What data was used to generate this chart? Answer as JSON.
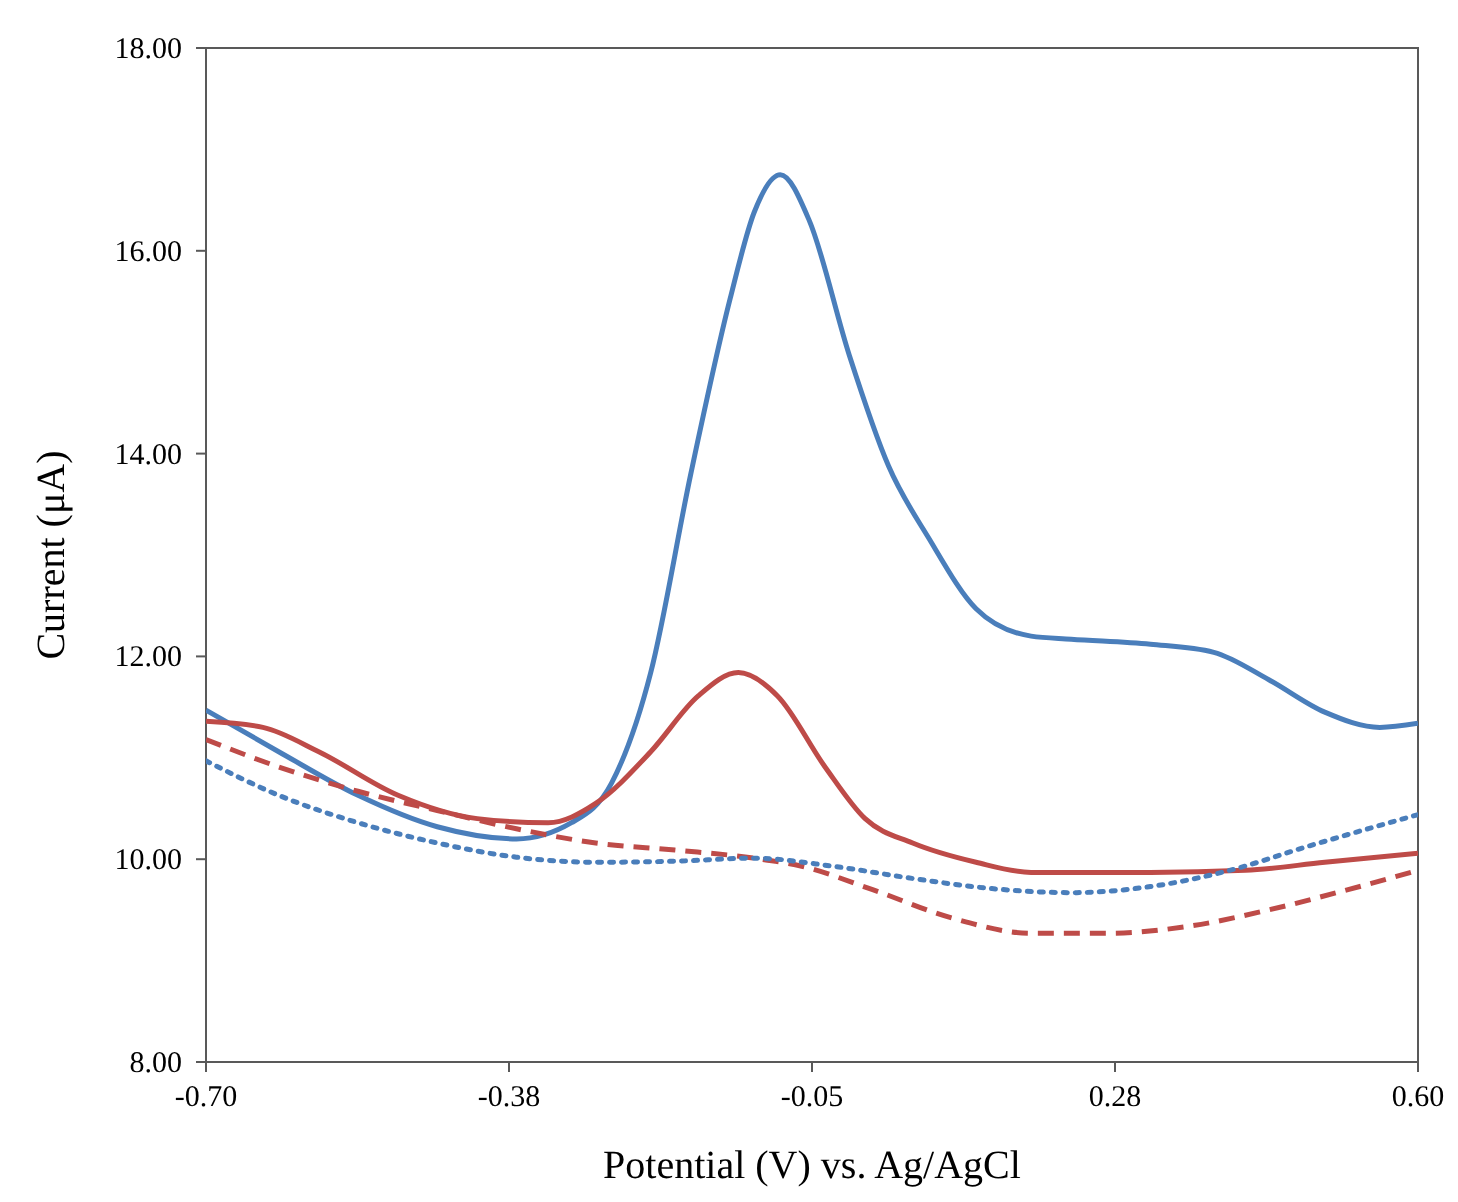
{
  "chart_data": {
    "type": "line",
    "xlabel": "Potential (V) vs. Ag/AgCl",
    "ylabel": "Current (μA)",
    "xlim": [
      -0.7,
      0.6
    ],
    "ylim": [
      8,
      18
    ],
    "xticks": [
      {
        "value": -0.7,
        "label": "-0.70"
      },
      {
        "value": -0.375,
        "label": "-0.38"
      },
      {
        "value": -0.05,
        "label": "-0.05"
      },
      {
        "value": 0.275,
        "label": "0.28"
      },
      {
        "value": 0.6,
        "label": "0.60"
      }
    ],
    "yticks": [
      {
        "value": 8,
        "label": "8.00"
      },
      {
        "value": 10,
        "label": "10.00"
      },
      {
        "value": 12,
        "label": "12.00"
      },
      {
        "value": 14,
        "label": "14.00"
      },
      {
        "value": 16,
        "label": "16.00"
      },
      {
        "value": 18,
        "label": "18.00"
      }
    ],
    "grid": false,
    "marker": "none",
    "series": [
      {
        "color": "#4a7ebb",
        "line_style": "solid",
        "x": [
          -0.7,
          -0.622,
          -0.537,
          -0.452,
          -0.367,
          -0.308,
          -0.265,
          -0.223,
          -0.18,
          -0.138,
          -0.112,
          -0.084,
          -0.053,
          -0.01,
          0.032,
          0.075,
          0.126,
          0.185,
          0.228,
          0.313,
          0.381,
          0.44,
          0.5,
          0.559,
          0.6
        ],
        "values": [
          11.47,
          11.06,
          10.63,
          10.32,
          10.2,
          10.36,
          10.75,
          11.84,
          13.8,
          15.52,
          16.38,
          16.75,
          16.3,
          14.97,
          13.88,
          13.17,
          12.47,
          12.2,
          12.17,
          12.12,
          12.04,
          11.77,
          11.45,
          11.3,
          11.34
        ]
      },
      {
        "color": "#be4b48",
        "line_style": "solid",
        "x": [
          -0.7,
          -0.639,
          -0.579,
          -0.494,
          -0.409,
          -0.333,
          -0.282,
          -0.223,
          -0.172,
          -0.129,
          -0.087,
          -0.036,
          0.007,
          0.058,
          0.126,
          0.185,
          0.313,
          0.415,
          0.5,
          0.6
        ],
        "values": [
          11.36,
          11.3,
          11.06,
          10.63,
          10.4,
          10.36,
          10.55,
          11.06,
          11.61,
          11.84,
          11.61,
          10.91,
          10.4,
          10.16,
          9.97,
          9.87,
          9.87,
          9.89,
          9.97,
          10.06
        ]
      },
      {
        "color": "#be4b48",
        "line_style": "dashed",
        "x": [
          -0.7,
          -0.622,
          -0.537,
          -0.452,
          -0.367,
          -0.282,
          -0.197,
          -0.112,
          -0.061,
          0.015,
          0.1,
          0.185,
          0.27,
          0.355,
          0.44,
          0.525,
          0.6
        ],
        "values": [
          11.18,
          10.91,
          10.67,
          10.48,
          10.3,
          10.16,
          10.09,
          10.01,
          9.93,
          9.7,
          9.42,
          9.27,
          9.27,
          9.34,
          9.5,
          9.7,
          9.89
        ]
      },
      {
        "color": "#4a7ebb",
        "line_style": "dotted",
        "x": [
          -0.7,
          -0.622,
          -0.537,
          -0.452,
          -0.367,
          -0.282,
          -0.197,
          -0.112,
          -0.027,
          0.058,
          0.143,
          0.228,
          0.313,
          0.398,
          0.483,
          0.6
        ],
        "values": [
          10.97,
          10.63,
          10.36,
          10.16,
          10.02,
          9.97,
          9.98,
          10.01,
          9.93,
          9.81,
          9.71,
          9.67,
          9.73,
          9.89,
          10.13,
          10.44
        ]
      }
    ]
  }
}
